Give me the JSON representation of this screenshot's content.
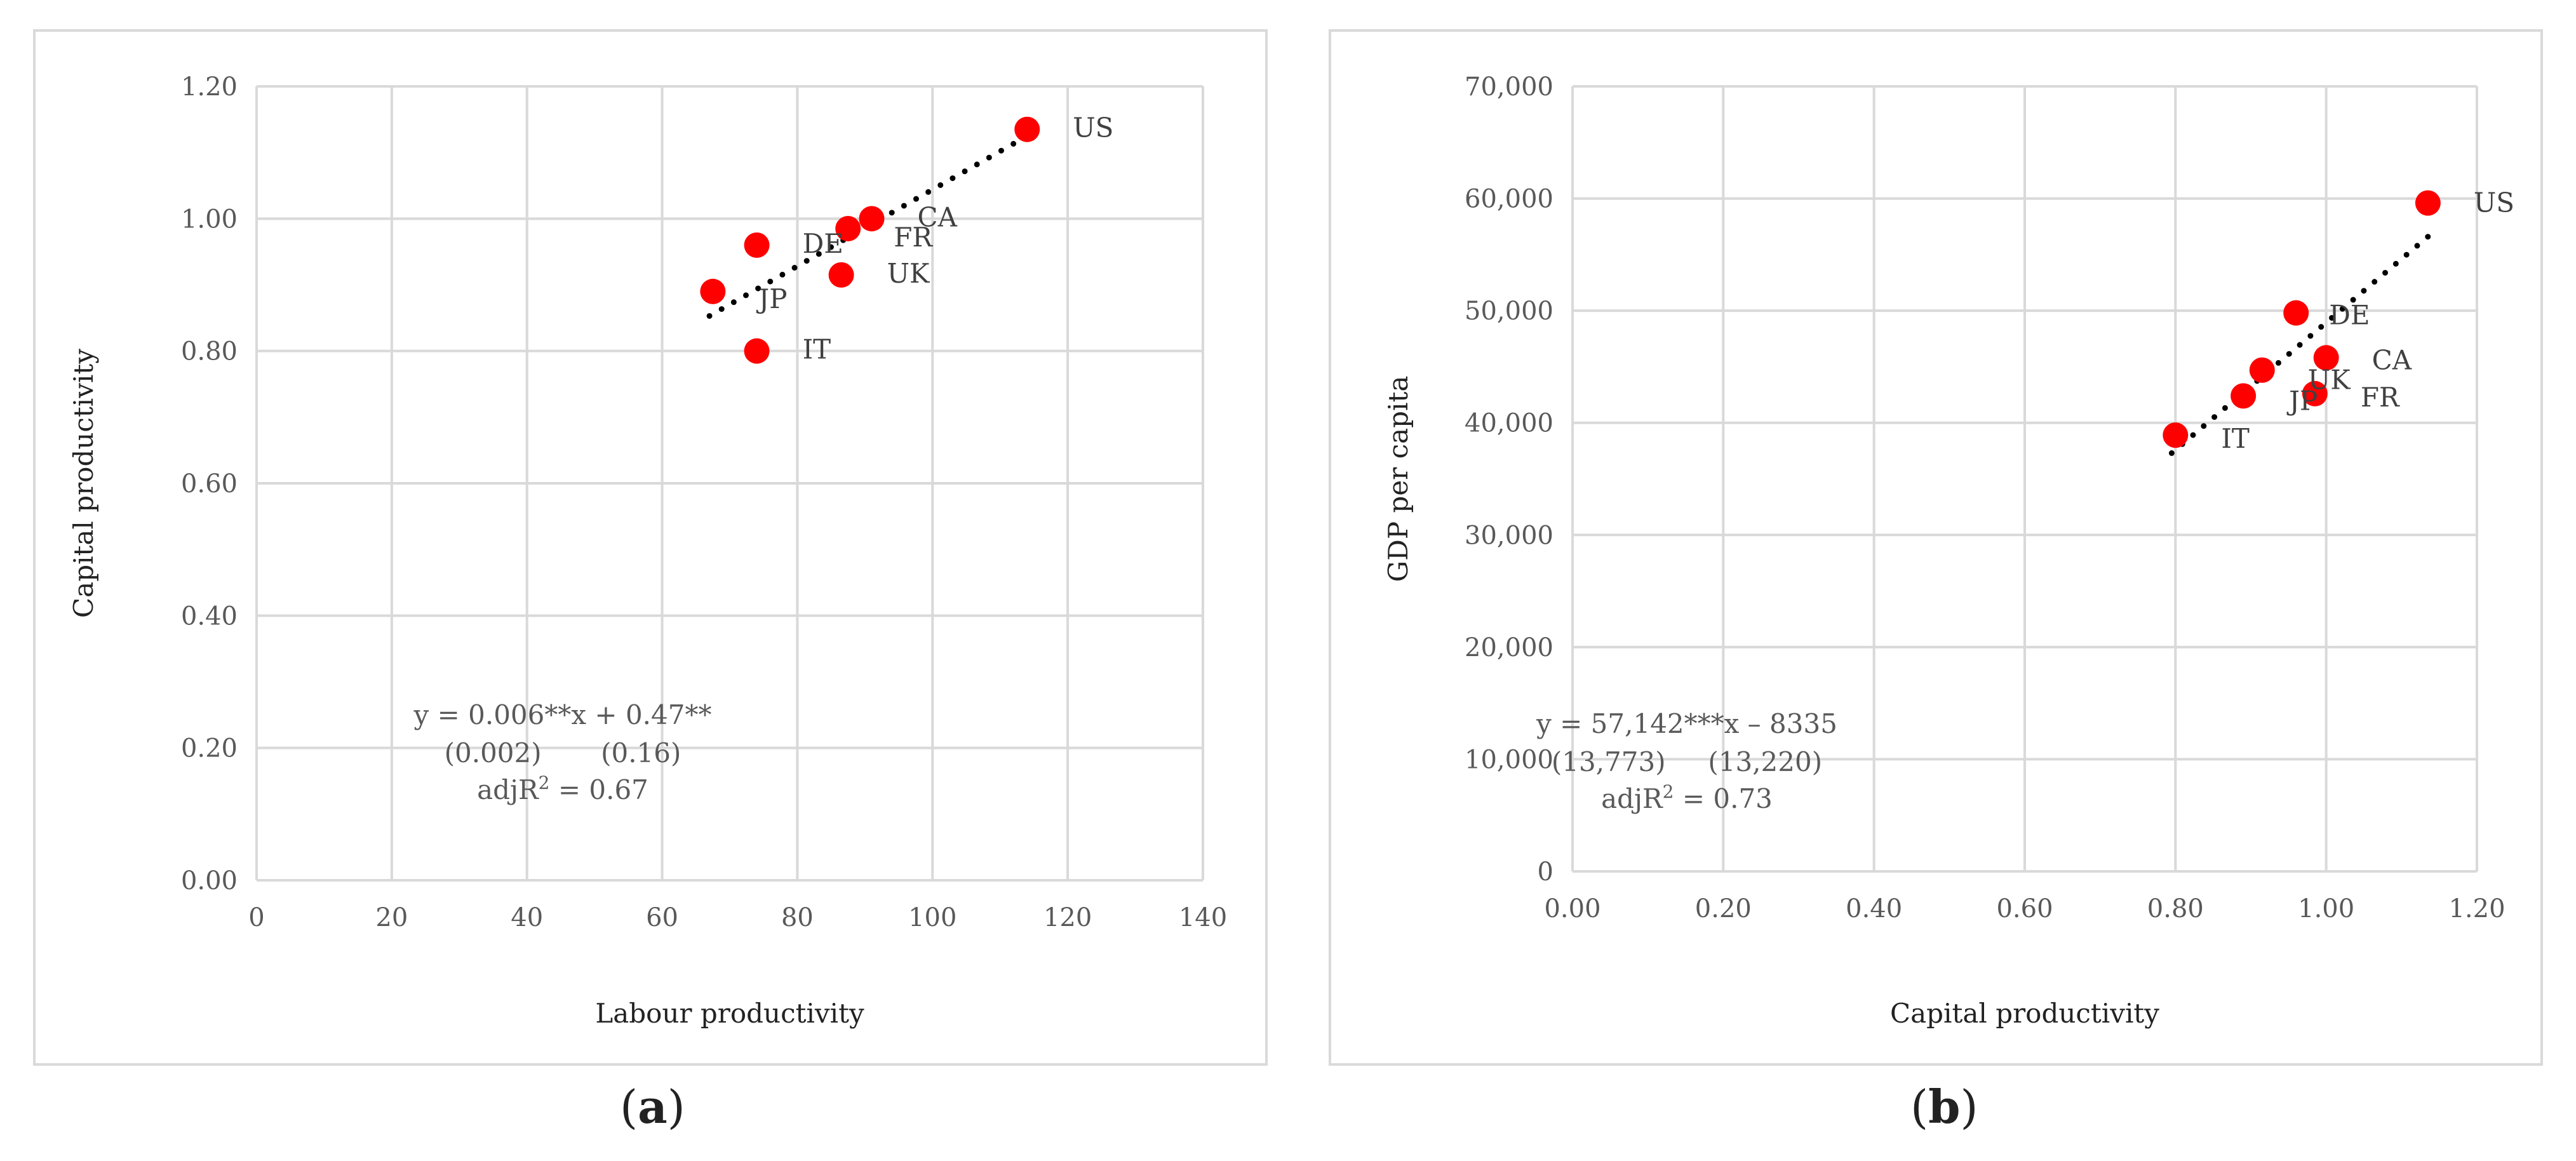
{
  "chart_data": [
    {
      "id": "a",
      "type": "scatter",
      "xlabel": "Labour productivity",
      "ylabel": "Capital productivity",
      "xlim": [
        0,
        140
      ],
      "ylim": [
        0.0,
        1.2
      ],
      "x_ticks": [
        0,
        20,
        40,
        60,
        80,
        100,
        120,
        140
      ],
      "x_tick_labels": [
        "0",
        "20",
        "40",
        "60",
        "80",
        "100",
        "120",
        "140"
      ],
      "y_ticks": [
        0.0,
        0.2,
        0.4,
        0.6,
        0.8,
        1.0,
        1.2
      ],
      "y_tick_labels": [
        "0.00",
        "0.20",
        "0.40",
        "0.60",
        "0.80",
        "1.00",
        "1.20"
      ],
      "grid": true,
      "points": [
        {
          "label": "US",
          "x": 114,
          "y": 1.135
        },
        {
          "label": "CA",
          "x": 91,
          "y": 1.0
        },
        {
          "label": "FR",
          "x": 87.5,
          "y": 0.985
        },
        {
          "label": "DE",
          "x": 74,
          "y": 0.96
        },
        {
          "label": "UK",
          "x": 86.5,
          "y": 0.915
        },
        {
          "label": "JP",
          "x": 67.5,
          "y": 0.89
        },
        {
          "label": "IT",
          "x": 74,
          "y": 0.8
        }
      ],
      "trendline": {
        "style": "dotted",
        "x_start": 67,
        "y_start": 0.853,
        "x_end": 114,
        "y_end": 1.125
      },
      "annotation": {
        "line1": "y = 0.006**x + 0.47**",
        "line2": "(0.002)       (0.16)",
        "line3_prefix": "adjR",
        "line3_sup": "2",
        "line3_suffix": " = 0.67"
      },
      "caption": "a"
    },
    {
      "id": "b",
      "type": "scatter",
      "xlabel": "Capital productivity",
      "ylabel": "GDP per capita",
      "xlim": [
        0.0,
        1.2
      ],
      "ylim": [
        0,
        70000
      ],
      "x_ticks": [
        0.0,
        0.2,
        0.4,
        0.6,
        0.8,
        1.0,
        1.2
      ],
      "x_tick_labels": [
        "0.00",
        "0.20",
        "0.40",
        "0.60",
        "0.80",
        "1.00",
        "1.20"
      ],
      "y_ticks": [
        0,
        10000,
        20000,
        30000,
        40000,
        50000,
        60000,
        70000
      ],
      "y_tick_labels": [
        "0",
        "10,000",
        "20,000",
        "30,000",
        "40,000",
        "50,000",
        "60,000",
        "70,000"
      ],
      "grid": true,
      "points": [
        {
          "label": "US",
          "x": 1.135,
          "y": 59600
        },
        {
          "label": "DE",
          "x": 0.96,
          "y": 49800
        },
        {
          "label": "CA",
          "x": 1.0,
          "y": 45800
        },
        {
          "label": "UK",
          "x": 0.915,
          "y": 44700
        },
        {
          "label": "JP",
          "x": 0.89,
          "y": 42400
        },
        {
          "label": "FR",
          "x": 0.985,
          "y": 42600
        },
        {
          "label": "IT",
          "x": 0.8,
          "y": 38900
        }
      ],
      "trendline": {
        "style": "dotted",
        "x_start": 0.795,
        "y_start": 37300,
        "x_end": 1.135,
        "y_end": 56600
      },
      "annotation": {
        "line1": "y = 57,142***x – 8335",
        "line2": "(13,773)     (13,220)",
        "line3_prefix": "adjR",
        "line3_sup": "2",
        "line3_suffix": " = 0.73"
      },
      "caption": "b"
    }
  ],
  "colors": {
    "marker": "#ff0000",
    "grid": "#d9d9d9",
    "trendline": "#000000"
  }
}
